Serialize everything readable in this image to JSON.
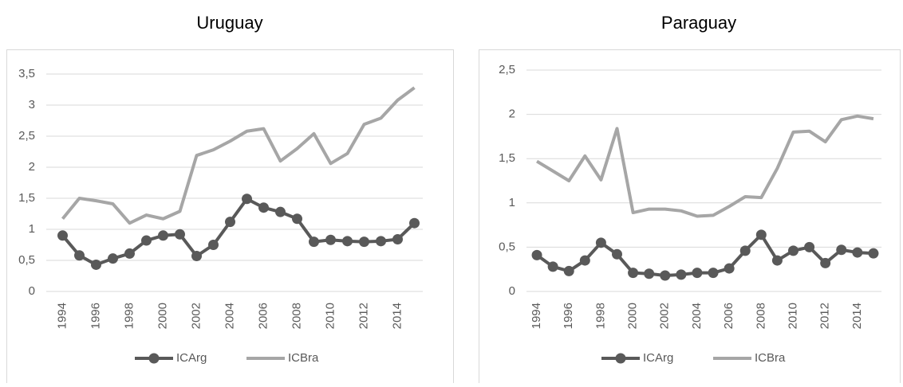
{
  "chart_data": [
    {
      "type": "line",
      "title": "Uruguay",
      "categories": [
        "1994",
        null,
        "1996",
        null,
        "1998",
        null,
        "2000",
        null,
        "2002",
        null,
        "2004",
        null,
        "2006",
        null,
        "2008",
        null,
        "2010",
        null,
        "2012",
        null,
        "2014",
        null
      ],
      "series": [
        {
          "name": "ICArg",
          "color": "#595959",
          "markers": true,
          "values": [
            0.9,
            0.58,
            0.43,
            0.53,
            0.61,
            0.82,
            0.9,
            0.92,
            0.57,
            0.75,
            1.12,
            1.49,
            1.35,
            1.28,
            1.17,
            0.8,
            0.83,
            0.81,
            0.8,
            0.81,
            0.84,
            1.1
          ]
        },
        {
          "name": "ICBra",
          "color": "#a6a6a6",
          "markers": false,
          "values": [
            1.17,
            1.5,
            1.46,
            1.41,
            1.1,
            1.23,
            1.17,
            1.29,
            2.19,
            2.28,
            2.42,
            2.58,
            2.62,
            2.1,
            2.3,
            2.54,
            2.06,
            2.22,
            2.69,
            2.79,
            3.08,
            3.28
          ]
        }
      ],
      "ylim": [
        0,
        3.5
      ],
      "yticks": [
        0,
        {
          "value": 0.5,
          "label": "0,5"
        },
        1,
        {
          "value": 1.5,
          "label": "1,5"
        },
        2,
        {
          "value": 2.5,
          "label": "2,5"
        },
        3,
        {
          "value": 3.5,
          "label": "3,5"
        }
      ],
      "grid": true,
      "legend": "bottom"
    },
    {
      "type": "line",
      "title": "Paraguay",
      "categories": [
        "1994",
        null,
        "1996",
        null,
        "1998",
        null,
        "2000",
        null,
        "2002",
        null,
        "2004",
        null,
        "2006",
        null,
        "2008",
        null,
        "2010",
        null,
        "2012",
        null,
        "2014",
        null
      ],
      "series": [
        {
          "name": "ICArg",
          "color": "#595959",
          "markers": true,
          "values": [
            0.41,
            0.28,
            0.23,
            0.35,
            0.55,
            0.42,
            0.21,
            0.2,
            0.18,
            0.19,
            0.21,
            0.21,
            0.26,
            0.46,
            0.64,
            0.35,
            0.46,
            0.5,
            0.32,
            0.47,
            0.44,
            0.43
          ]
        },
        {
          "name": "ICBra",
          "color": "#a6a6a6",
          "markers": false,
          "values": [
            1.47,
            1.36,
            1.25,
            1.53,
            1.26,
            1.84,
            0.89,
            0.93,
            0.93,
            0.91,
            0.85,
            0.86,
            0.96,
            1.07,
            1.06,
            1.39,
            1.8,
            1.81,
            1.69,
            1.94,
            1.98,
            1.95
          ]
        }
      ],
      "ylim": [
        0,
        2.5
      ],
      "yticks": [
        0,
        {
          "value": 0.5,
          "label": "0,5"
        },
        1,
        {
          "value": 1.5,
          "label": "1,5"
        },
        2,
        {
          "value": 2.5,
          "label": "2,5"
        }
      ],
      "grid": true,
      "legend": "bottom"
    }
  ]
}
